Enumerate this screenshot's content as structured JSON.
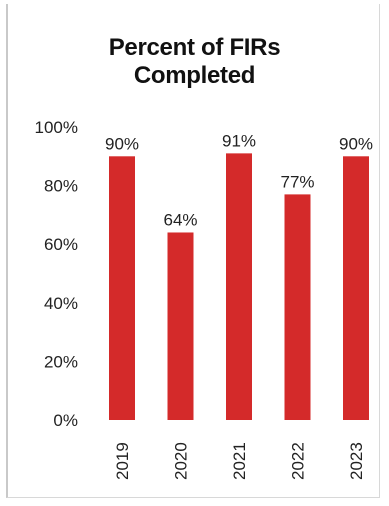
{
  "chart_data": {
    "type": "bar",
    "title_lines": [
      "Percent of FIRs",
      "Completed"
    ],
    "categories": [
      "2019",
      "2020",
      "2021",
      "2022",
      "2023"
    ],
    "values": [
      90,
      64,
      91,
      77,
      90
    ],
    "data_labels": [
      "90%",
      "64%",
      "91%",
      "77%",
      "90%"
    ],
    "y_ticks": [
      "0%",
      "20%",
      "40%",
      "60%",
      "80%",
      "100%"
    ],
    "ylim": [
      0,
      100
    ],
    "xlabel": "",
    "ylabel": "",
    "grid": false,
    "legend": "none",
    "bar_color": "#d42a2a"
  }
}
